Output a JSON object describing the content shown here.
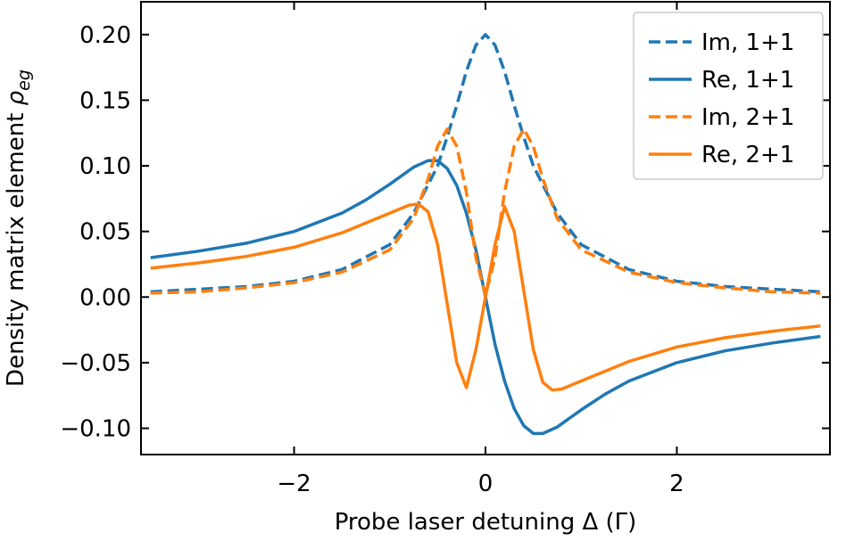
{
  "chart_data": {
    "type": "line",
    "xlabel": "Probe laser detuning Δ (Γ)",
    "ylabel_text": "Density matrix element ",
    "ylabel_symbol": "ρ",
    "ylabel_subscript": "eg",
    "xlim": [
      -3.6,
      3.6
    ],
    "ylim": [
      -0.12,
      0.225
    ],
    "xticks": [
      -2,
      0,
      2
    ],
    "xtick_labels": [
      "−2",
      "0",
      "2"
    ],
    "yticks": [
      -0.1,
      -0.05,
      0.0,
      0.05,
      0.1,
      0.15,
      0.2
    ],
    "ytick_labels": [
      "−0.10",
      "−0.05",
      "0.00",
      "0.05",
      "0.10",
      "0.15",
      "0.20"
    ],
    "grid": false,
    "legend_position": "top-right",
    "colors": {
      "blue": "#1f77b4",
      "orange": "#ff7f0e"
    },
    "series": [
      {
        "name": "Im, 1+1",
        "color": "#1f77b4",
        "style": "dashed",
        "x": [
          -3.5,
          -3.0,
          -2.5,
          -2.0,
          -1.5,
          -1.0,
          -0.75,
          -0.5,
          -0.4,
          -0.3,
          -0.2,
          -0.1,
          0.0,
          0.1,
          0.2,
          0.3,
          0.4,
          0.5,
          0.75,
          1.0,
          1.5,
          2.0,
          2.5,
          3.0,
          3.5
        ],
        "y": [
          0.004,
          0.006,
          0.008,
          0.012,
          0.021,
          0.04,
          0.064,
          0.1,
          0.122,
          0.146,
          0.172,
          0.192,
          0.2,
          0.192,
          0.172,
          0.146,
          0.122,
          0.1,
          0.064,
          0.04,
          0.021,
          0.012,
          0.008,
          0.006,
          0.004
        ]
      },
      {
        "name": "Re, 1+1",
        "color": "#1f77b4",
        "style": "solid",
        "x": [
          -3.5,
          -3.0,
          -2.5,
          -2.0,
          -1.5,
          -1.25,
          -1.0,
          -0.75,
          -0.6,
          -0.5,
          -0.4,
          -0.3,
          -0.2,
          -0.1,
          0.0,
          0.1,
          0.2,
          0.3,
          0.4,
          0.5,
          0.6,
          0.75,
          1.0,
          1.25,
          1.5,
          2.0,
          2.5,
          3.0,
          3.5
        ],
        "y": [
          0.03,
          0.035,
          0.041,
          0.05,
          0.064,
          0.074,
          0.086,
          0.099,
          0.104,
          0.104,
          0.098,
          0.085,
          0.064,
          0.036,
          0.0,
          -0.036,
          -0.064,
          -0.085,
          -0.098,
          -0.104,
          -0.104,
          -0.099,
          -0.086,
          -0.074,
          -0.064,
          -0.05,
          -0.041,
          -0.035,
          -0.03
        ]
      },
      {
        "name": "Im, 2+1",
        "color": "#ff7f0e",
        "style": "dashed",
        "x": [
          -3.5,
          -3.0,
          -2.5,
          -2.0,
          -1.5,
          -1.0,
          -0.75,
          -0.6,
          -0.5,
          -0.4,
          -0.3,
          -0.2,
          -0.1,
          0.0,
          0.1,
          0.2,
          0.3,
          0.4,
          0.5,
          0.6,
          0.75,
          1.0,
          1.5,
          2.0,
          2.5,
          3.0,
          3.5
        ],
        "y": [
          0.003,
          0.004,
          0.007,
          0.011,
          0.019,
          0.036,
          0.06,
          0.09,
          0.115,
          0.128,
          0.115,
          0.08,
          0.03,
          0.001,
          0.03,
          0.08,
          0.115,
          0.128,
          0.115,
          0.09,
          0.06,
          0.036,
          0.019,
          0.011,
          0.007,
          0.004,
          0.003
        ]
      },
      {
        "name": "Re, 2+1",
        "color": "#ff7f0e",
        "style": "solid",
        "x": [
          -3.5,
          -3.0,
          -2.5,
          -2.0,
          -1.5,
          -1.0,
          -0.8,
          -0.7,
          -0.6,
          -0.5,
          -0.4,
          -0.3,
          -0.2,
          -0.1,
          0.0,
          0.1,
          0.2,
          0.3,
          0.4,
          0.5,
          0.6,
          0.7,
          0.8,
          1.0,
          1.5,
          2.0,
          2.5,
          3.0,
          3.5
        ],
        "y": [
          0.022,
          0.026,
          0.031,
          0.038,
          0.049,
          0.064,
          0.07,
          0.071,
          0.065,
          0.04,
          -0.005,
          -0.05,
          -0.069,
          -0.04,
          0.0,
          0.04,
          0.069,
          0.05,
          0.005,
          -0.04,
          -0.065,
          -0.071,
          -0.07,
          -0.064,
          -0.049,
          -0.038,
          -0.031,
          -0.026,
          -0.022
        ]
      }
    ]
  }
}
